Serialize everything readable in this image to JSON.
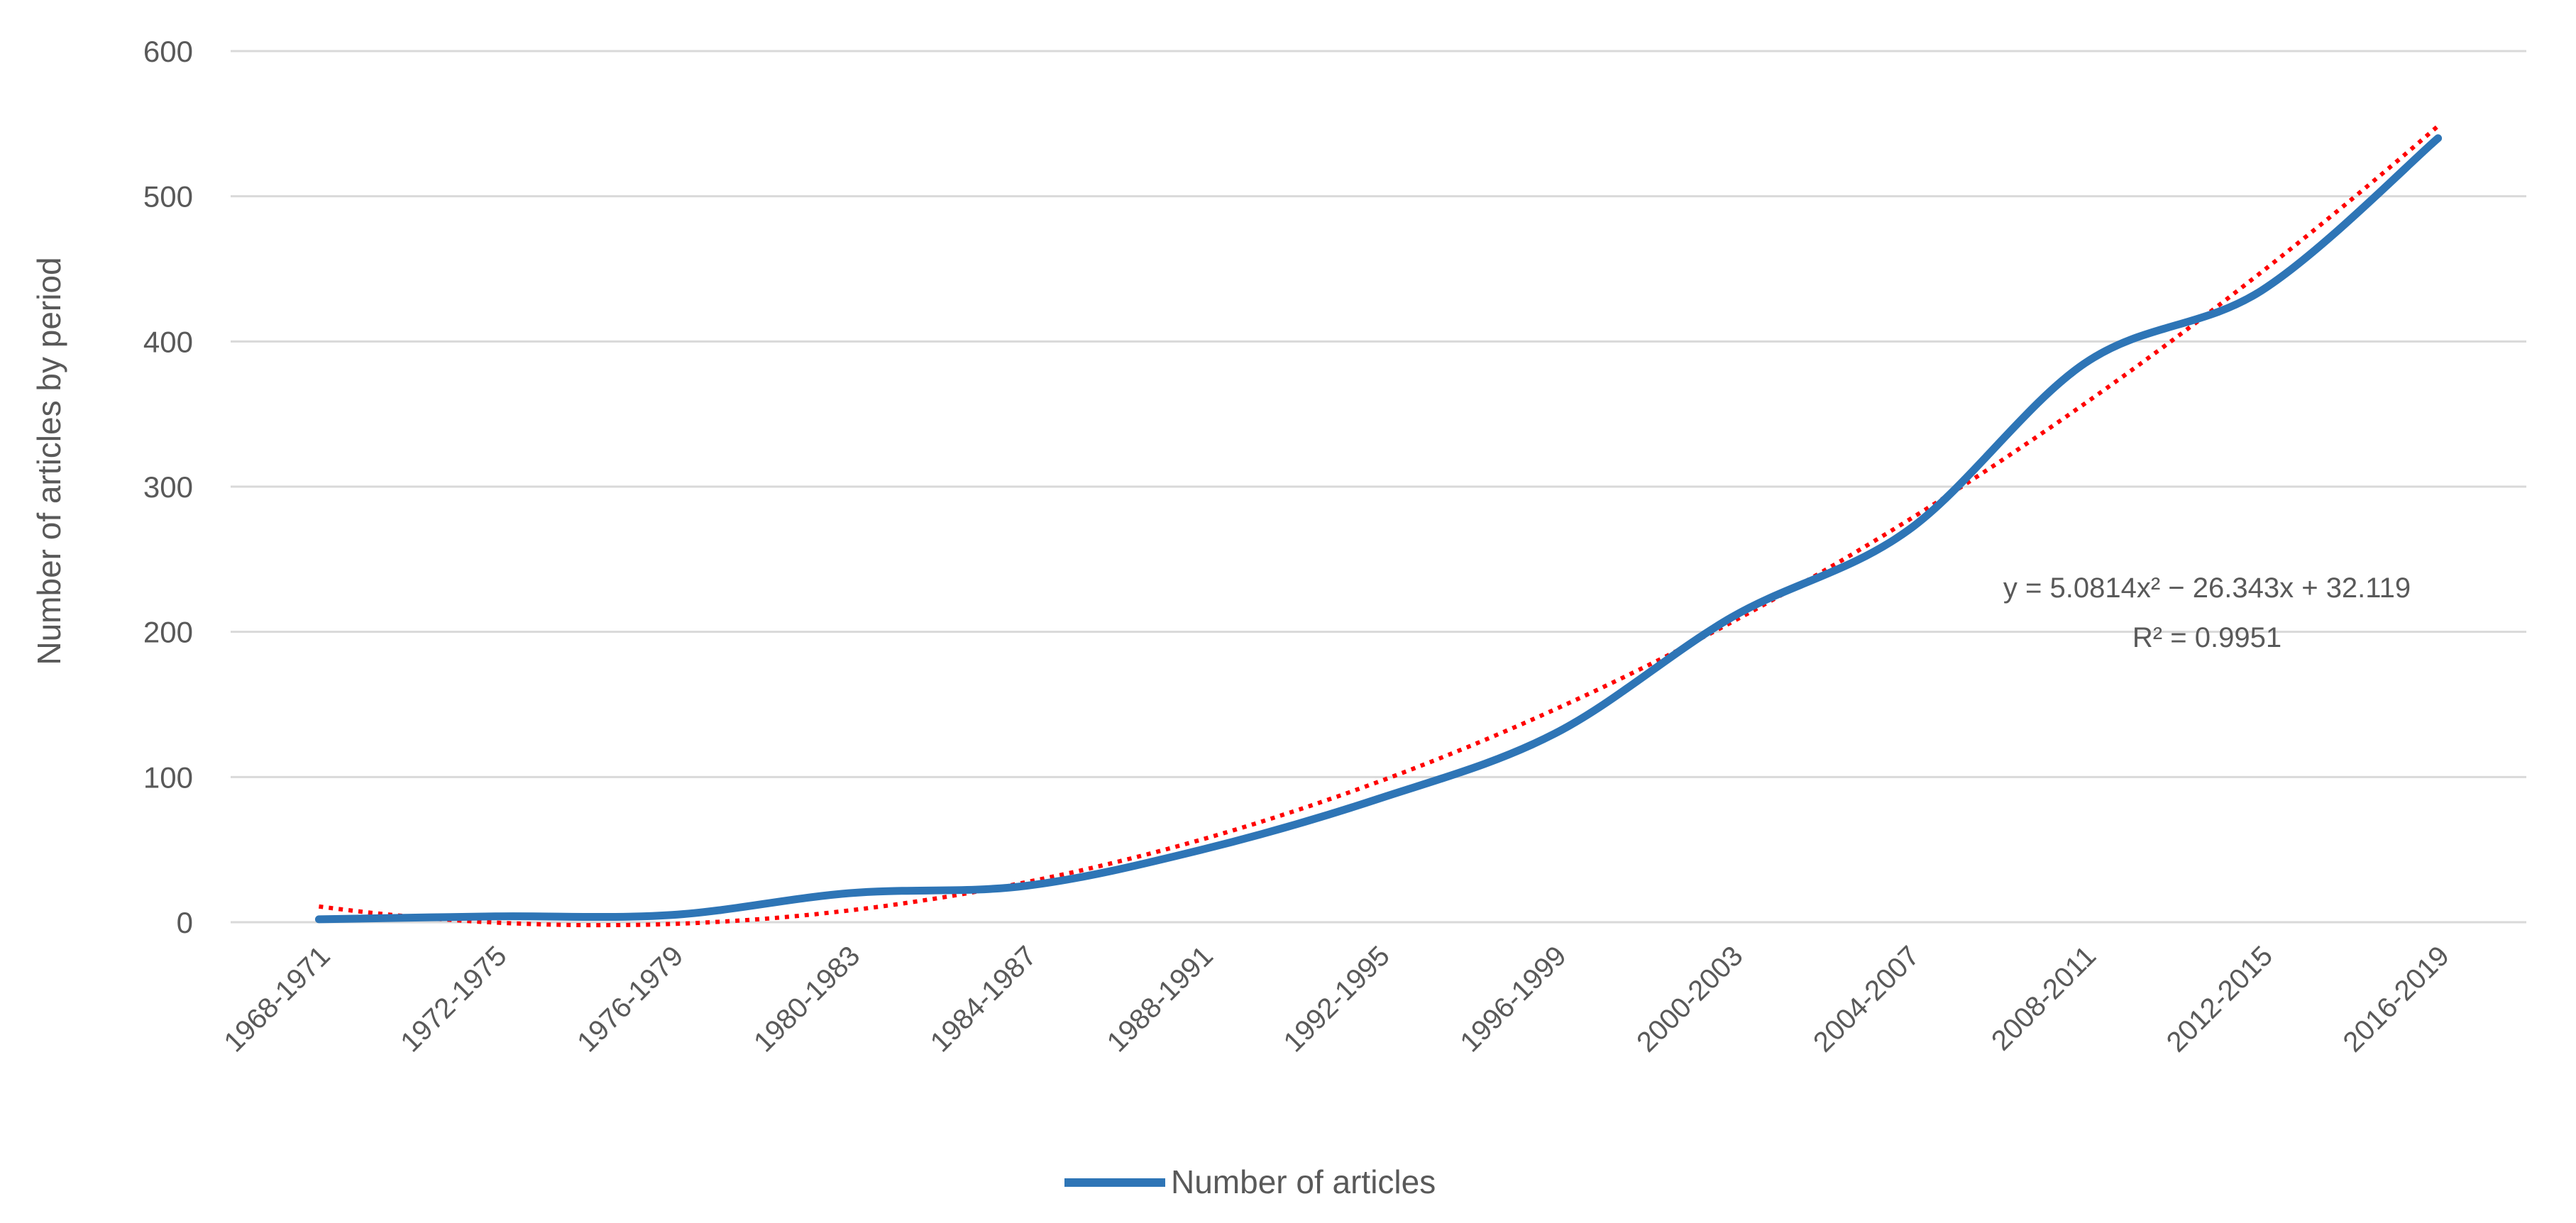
{
  "chart_data": {
    "type": "line",
    "categories": [
      "1968-1971",
      "1972-1975",
      "1976-1979",
      "1980-1983",
      "1984-1987",
      "1988-1991",
      "1992-1995",
      "1996-1999",
      "2000-2003",
      "2004-2007",
      "2008-2011",
      "2012-2015",
      "2016-2019"
    ],
    "series": [
      {
        "name": "Number of articles",
        "values": [
          2,
          4,
          5,
          20,
          25,
          50,
          85,
          130,
          210,
          270,
          385,
          435,
          540
        ],
        "color": "#2e75b6"
      }
    ],
    "trendline": {
      "type": "polynomial-2",
      "coefficients": [
        5.0814,
        -26.343,
        32.119
      ],
      "equation": "y = 5.0814x² − 26.343x + 32.119",
      "r_squared": "R² = 0.9951",
      "color": "#ff0000"
    },
    "title": "",
    "xlabel": "",
    "ylabel": "Number  of articles by period",
    "ylim": [
      0,
      600
    ],
    "yticks": [
      0,
      100,
      200,
      300,
      400,
      500,
      600
    ],
    "grid": true,
    "legend": "bottom-center"
  }
}
